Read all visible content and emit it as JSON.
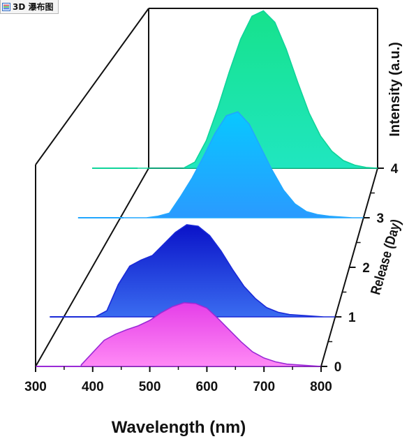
{
  "window": {
    "tab_title": "3D 瀑布图"
  },
  "colors": {
    "day0": "#ee3bee",
    "day1": "#1428e0",
    "day2": "#1f9fff",
    "day3": "#15e6a8"
  },
  "chart_data": {
    "type": "area",
    "title": "",
    "xlabel": "Wavelength (nm)",
    "ylabel": "Intensity (a.u.)",
    "zlabel": "Release (Day)",
    "xlim": [
      300,
      800
    ],
    "x_ticks": [
      "300",
      "400",
      "500",
      "600",
      "700",
      "800"
    ],
    "z_ticks": [
      "0",
      "1",
      "2",
      "3",
      "4"
    ],
    "z_lim": [
      0,
      4
    ],
    "grid": false,
    "legend": "none",
    "x": [
      380,
      400,
      420,
      440,
      460,
      480,
      500,
      520,
      540,
      560,
      580,
      600,
      620,
      640,
      660,
      680,
      700,
      720,
      740,
      760,
      780,
      800
    ],
    "series": [
      {
        "z": 0,
        "values": [
          0.02,
          0.18,
          0.34,
          0.42,
          0.48,
          0.53,
          0.6,
          0.7,
          0.78,
          0.83,
          0.82,
          0.76,
          0.62,
          0.47,
          0.32,
          0.19,
          0.11,
          0.06,
          0.03,
          0.02,
          0.01,
          0.0
        ]
      },
      {
        "z": 1,
        "values": [
          0.0,
          0.08,
          0.42,
          0.66,
          0.74,
          0.8,
          0.95,
          1.1,
          1.2,
          1.18,
          1.06,
          0.86,
          0.62,
          0.4,
          0.24,
          0.12,
          0.06,
          0.03,
          0.02,
          0.01,
          0.0,
          0.0
        ]
      },
      {
        "z": 3,
        "values": [
          0.0,
          0.0,
          0.0,
          0.02,
          0.06,
          0.28,
          0.52,
          0.8,
          1.1,
          1.33,
          1.38,
          1.22,
          0.92,
          0.62,
          0.36,
          0.18,
          0.08,
          0.04,
          0.02,
          0.01,
          0.0,
          0.0
        ]
      },
      {
        "z": 4,
        "values": [
          0.0,
          0.0,
          0.0,
          0.0,
          0.0,
          0.08,
          0.36,
          0.78,
          1.25,
          1.68,
          1.98,
          2.05,
          1.9,
          1.55,
          1.12,
          0.72,
          0.42,
          0.22,
          0.1,
          0.04,
          0.01,
          0.0
        ]
      }
    ]
  }
}
